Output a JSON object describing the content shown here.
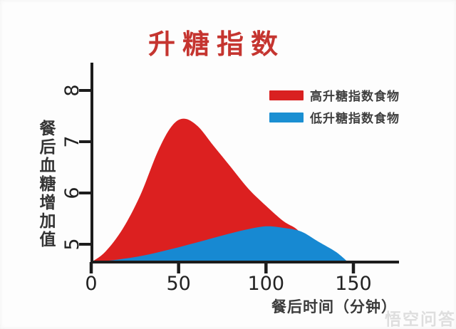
{
  "title": {
    "text": "升糖指数",
    "color": "#c53530"
  },
  "legend": {
    "position": "upper-right",
    "items": [
      {
        "label": "高升糖指数食物",
        "color": "#d92121"
      },
      {
        "label": "低升糖指数食物",
        "color": "#1b8fd2"
      }
    ]
  },
  "watermark": "悟空问答",
  "chart_data": {
    "type": "area",
    "title": "升糖指数",
    "xlabel": "餐后时间（分钟）",
    "ylabel": "餐后血糖增加值",
    "xlim": [
      0,
      176
    ],
    "ylim": [
      4.65,
      8.4
    ],
    "x_ticks": [
      0,
      50,
      100,
      150
    ],
    "y_ticks": [
      5,
      6,
      7,
      8
    ],
    "baseline_value": 4.65,
    "grid": false,
    "legend_position": "upper right",
    "axis_color": "#1c1c1c",
    "series": [
      {
        "name": "高升糖指数食物",
        "color": "#dc2020",
        "peak": {
          "x": 53,
          "y": 7.45
        },
        "points": [
          [
            0,
            4.65
          ],
          [
            8,
            4.85
          ],
          [
            18,
            5.3
          ],
          [
            28,
            5.95
          ],
          [
            38,
            6.8
          ],
          [
            46,
            7.3
          ],
          [
            53,
            7.45
          ],
          [
            61,
            7.3
          ],
          [
            70,
            6.92
          ],
          [
            80,
            6.5
          ],
          [
            90,
            6.08
          ],
          [
            100,
            5.75
          ],
          [
            110,
            5.45
          ],
          [
            118,
            5.28
          ],
          [
            126,
            4.95
          ],
          [
            133,
            4.65
          ]
        ]
      },
      {
        "name": "低升糖指数食物",
        "color": "#1789d2",
        "peak": {
          "x": 100,
          "y": 5.35
        },
        "points": [
          [
            0,
            4.65
          ],
          [
            15,
            4.7
          ],
          [
            30,
            4.78
          ],
          [
            45,
            4.9
          ],
          [
            60,
            5.03
          ],
          [
            75,
            5.17
          ],
          [
            88,
            5.28
          ],
          [
            100,
            5.35
          ],
          [
            110,
            5.32
          ],
          [
            120,
            5.25
          ],
          [
            130,
            5.05
          ],
          [
            140,
            4.85
          ],
          [
            147,
            4.65
          ]
        ]
      }
    ]
  }
}
